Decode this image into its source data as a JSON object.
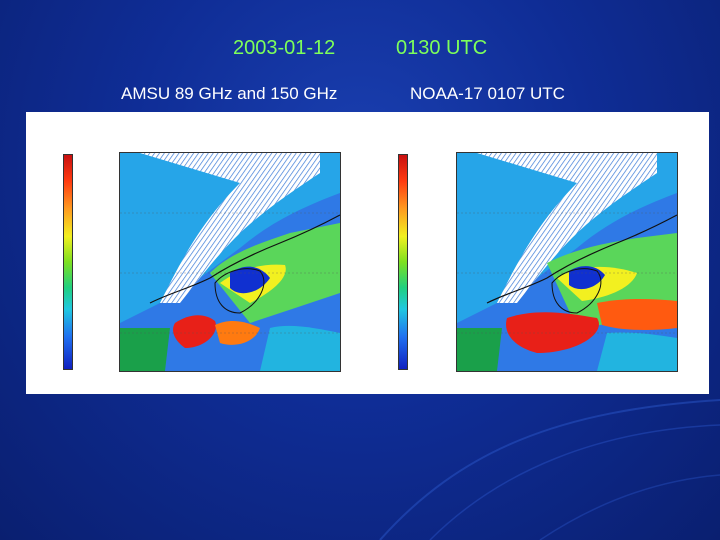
{
  "slide": {
    "date": "2003-01-12",
    "time": "0130 UTC",
    "instrument": "AMSU 89 GHz and 150 GHz",
    "satellite": "NOAA-17  0107 UTC"
  },
  "colors": {
    "title_green": "#7dff5a",
    "background_blue": "#0f2d96"
  }
}
